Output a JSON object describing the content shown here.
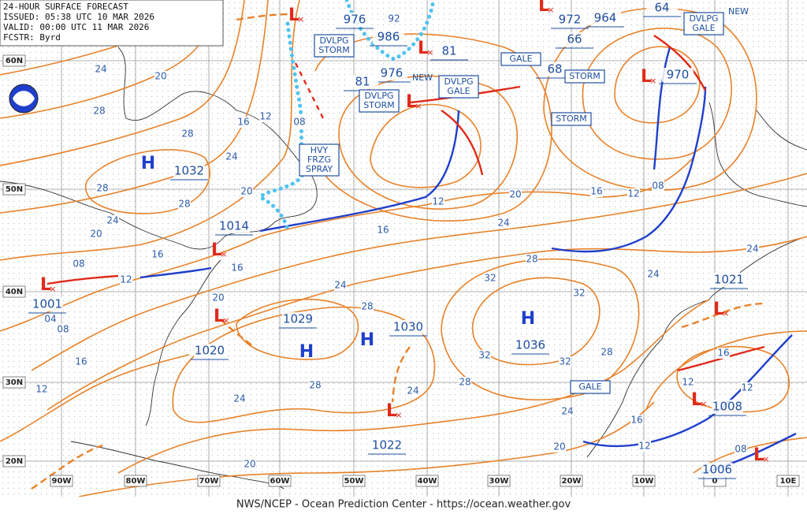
{
  "header": {
    "title": "24-HOUR SURFACE FORECAST",
    "issued": "ISSUED: 05:38 UTC 10 MAR 2026",
    "valid": "VALID:  00:00 UTC 11 MAR 2026",
    "forecaster": "FCSTR:  Byrd"
  },
  "latitude_labels": [
    "60N",
    "50N",
    "40N",
    "30N",
    "20N"
  ],
  "longitude_labels": [
    "90W",
    "80W",
    "70W",
    "60W",
    "50W",
    "40W",
    "30W",
    "20W",
    "10W",
    "0",
    "10E"
  ],
  "centers": [
    "H",
    "H",
    "H",
    "H",
    "L",
    "L",
    "L",
    "L",
    "L",
    "L",
    "L",
    "L",
    "L",
    "L",
    "L",
    "L"
  ],
  "pressure_labels": [
    "1032",
    "1001",
    "1014",
    "1020",
    "1029",
    "1030",
    "1036",
    "1022",
    "1021",
    "1008",
    "1006",
    "970",
    "976",
    "986",
    "976",
    "81",
    "81",
    "972",
    "964",
    "66",
    "68",
    "64"
  ],
  "warnings": [
    {
      "lines": [
        "DVLPG",
        "STORM"
      ]
    },
    {
      "lines": [
        "DVLPG",
        "GALE"
      ]
    },
    {
      "lines": [
        "DVLPG",
        "STORM"
      ]
    },
    {
      "lines": [
        "HVY",
        "FRZG",
        "SPRAY"
      ]
    },
    {
      "lines": [
        "GALE"
      ]
    },
    {
      "lines": [
        "STORM"
      ]
    },
    {
      "lines": [
        "STORM"
      ]
    },
    {
      "lines": [
        "DVLPG",
        "GALE"
      ]
    },
    {
      "lines": [
        "GALE"
      ]
    }
  ],
  "new_labels": [
    "NEW",
    "NEW"
  ],
  "isobar_labels": [
    "24",
    "20",
    "28",
    "28",
    "16",
    "12",
    "08",
    "24",
    "28",
    "28",
    "20",
    "24",
    "20",
    "16",
    "08",
    "12",
    "16",
    "20",
    "04",
    "08",
    "16",
    "12",
    "24",
    "28",
    "32",
    "32",
    "28",
    "24",
    "20",
    "16",
    "12",
    "16",
    "12",
    "08",
    "24",
    "24",
    "28",
    "32",
    "32",
    "28",
    "28",
    "24",
    "24",
    "24",
    "20",
    "20",
    "16",
    "12",
    "12",
    "16",
    "12",
    "08",
    "92"
  ],
  "footer": "NWS/NCEP - Ocean Prediction Center - https://ocean.weather.gov"
}
